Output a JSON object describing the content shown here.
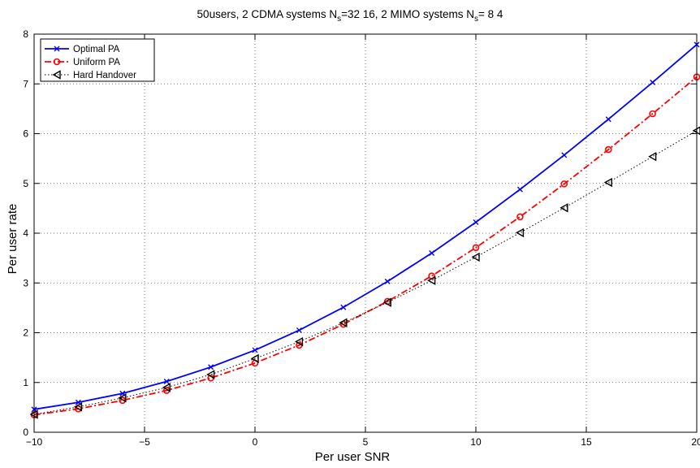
{
  "chart_data": {
    "type": "line",
    "title": "50users, 2 CDMA systems N_s=32  16, 2 MIMO systems N_s= 8   4",
    "title_parts": {
      "part1": "50users, 2 CDMA systems N",
      "sub1": "s",
      "part2": "=32  16, 2 MIMO systems N",
      "sub2": "s",
      "part3": "= 8   4"
    },
    "xlabel": "Per user SNR",
    "ylabel": "Per user rate",
    "xlim": [
      -10,
      20
    ],
    "ylim": [
      0,
      8
    ],
    "x_ticks": [
      -10,
      -5,
      0,
      5,
      10,
      15,
      20
    ],
    "x_tick_labels": [
      "−10",
      "−5",
      "0",
      "5",
      "10",
      "15",
      "20"
    ],
    "y_ticks": [
      0,
      1,
      2,
      3,
      4,
      5,
      6,
      7,
      8
    ],
    "y_tick_labels": [
      "0",
      "1",
      "2",
      "3",
      "4",
      "5",
      "6",
      "7",
      "8"
    ],
    "grid": true,
    "legend_position": "top-left",
    "x": [
      -10,
      -8,
      -6,
      -4,
      -2,
      0,
      2,
      4,
      6,
      8,
      10,
      12,
      14,
      16,
      18,
      20
    ],
    "series": [
      {
        "name": "Optimal PA",
        "color": "#0000ff",
        "line_style": "solid",
        "marker": "x",
        "values": [
          0.46,
          0.6,
          0.78,
          1.02,
          1.31,
          1.65,
          2.05,
          2.51,
          3.03,
          3.6,
          4.22,
          4.88,
          5.57,
          6.29,
          7.03,
          7.79
        ]
      },
      {
        "name": "Uniform PA",
        "color": "#ff0000",
        "line_style": "dashdot",
        "marker": "circle",
        "values": [
          0.35,
          0.47,
          0.64,
          0.84,
          1.09,
          1.39,
          1.75,
          2.17,
          2.63,
          3.14,
          3.71,
          4.33,
          4.99,
          5.68,
          6.4,
          7.14
        ]
      },
      {
        "name": "Hard Handover",
        "color": "#000000",
        "line_style": "dotted",
        "marker": "triangle-left",
        "values": [
          0.36,
          0.51,
          0.69,
          0.9,
          1.16,
          1.48,
          1.82,
          2.2,
          2.61,
          3.05,
          3.52,
          4.01,
          4.51,
          5.02,
          5.54,
          6.06
        ]
      }
    ]
  }
}
